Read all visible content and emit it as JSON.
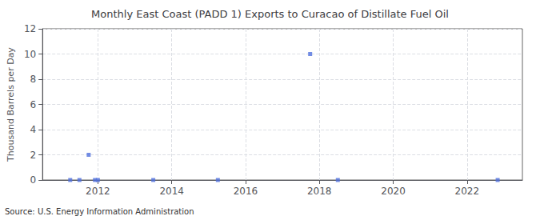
{
  "chart_data": {
    "type": "scatter",
    "title": "Monthly East Coast (PADD 1) Exports to Curacao of Distillate Fuel Oil",
    "ylabel": "Thousand Barrels per Day",
    "source": "Source: U.S. Energy Information Administration",
    "x": [
      2011.25,
      2011.5,
      2011.75,
      2011.92,
      2012.0,
      2013.5,
      2015.25,
      2017.75,
      2018.5,
      2022.83
    ],
    "values": [
      0.0,
      0.0,
      2.0,
      0.0,
      0.0,
      0.0,
      0.0,
      10.0,
      0.0,
      0.0
    ],
    "marker": "square",
    "xlim": [
      2010.5,
      2023.5
    ],
    "xticks": [
      2012,
      2014,
      2016,
      2018,
      2020,
      2022
    ],
    "ylim": [
      0,
      12
    ],
    "yticks": [
      0,
      2,
      4,
      6,
      8,
      10,
      12
    ],
    "grid": true
  }
}
